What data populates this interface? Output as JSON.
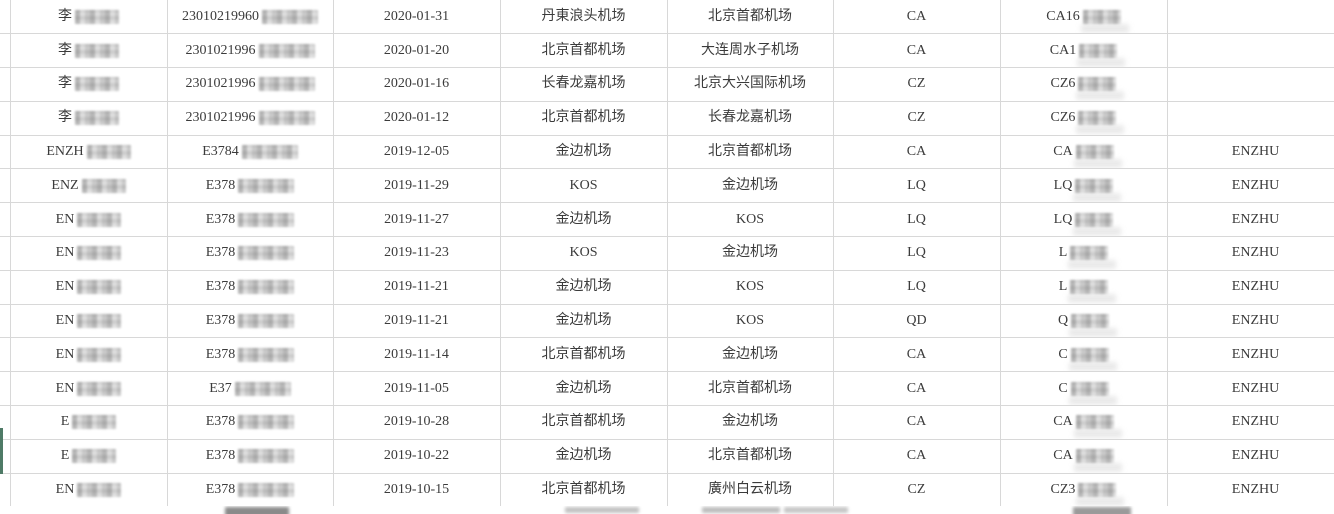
{
  "colors": {
    "background": "#ffffff",
    "grid_line": "#d8d8d8",
    "text": "#3b3b3b",
    "selection_stripe_green": "#4e7a66",
    "mosaic_gray": "#dcdcdc"
  },
  "table": {
    "description": "flight-records-grid",
    "columns": [
      "passenger-name",
      "id-number",
      "flight-date",
      "departure-airport",
      "arrival-airport",
      "airline-code",
      "flight-number",
      "tag"
    ],
    "redaction_note": "name, id-number and flight-number are pixel-mosaic censored after the visible prefix",
    "rows": [
      {
        "name": "李",
        "id": "23010219960",
        "date": "2020-01-31",
        "dep": "丹東浪头机场",
        "arr": "北京首都机场",
        "air": "CA",
        "flight": "CA16",
        "tag": ""
      },
      {
        "name": "李",
        "id": "2301021996",
        "date": "2020-01-20",
        "dep": "北京首都机场",
        "arr": "大连周水子机场",
        "air": "CA",
        "flight": "CA1",
        "tag": ""
      },
      {
        "name": "李",
        "id": "2301021996",
        "date": "2020-01-16",
        "dep": "长春龙嘉机场",
        "arr": "北京大兴国际机场",
        "air": "CZ",
        "flight": "CZ6",
        "tag": ""
      },
      {
        "name": "李",
        "id": "2301021996",
        "date": "2020-01-12",
        "dep": "北京首都机场",
        "arr": "长春龙嘉机场",
        "air": "CZ",
        "flight": "CZ6",
        "tag": ""
      },
      {
        "name": "ENZH",
        "id": "E3784",
        "date": "2019-12-05",
        "dep": "金边机场",
        "arr": "北京首都机场",
        "air": "CA",
        "flight": "CA",
        "tag": "ENZHU"
      },
      {
        "name": "ENZ",
        "id": "E378",
        "date": "2019-11-29",
        "dep": "KOS",
        "arr": "金边机场",
        "air": "LQ",
        "flight": "LQ",
        "tag": "ENZHU"
      },
      {
        "name": "EN",
        "id": "E378",
        "date": "2019-11-27",
        "dep": "金边机场",
        "arr": "KOS",
        "air": "LQ",
        "flight": "LQ",
        "tag": "ENZHU"
      },
      {
        "name": "EN",
        "id": "E378",
        "date": "2019-11-23",
        "dep": "KOS",
        "arr": "金边机场",
        "air": "LQ",
        "flight": "L",
        "tag": "ENZHU"
      },
      {
        "name": "EN",
        "id": "E378",
        "date": "2019-11-21",
        "dep": "金边机场",
        "arr": "KOS",
        "air": "LQ",
        "flight": "L",
        "tag": "ENZHU"
      },
      {
        "name": "EN",
        "id": "E378",
        "date": "2019-11-21",
        "dep": "金边机场",
        "arr": "KOS",
        "air": "QD",
        "flight": "Q",
        "tag": "ENZHU"
      },
      {
        "name": "EN",
        "id": "E378",
        "date": "2019-11-14",
        "dep": "北京首都机场",
        "arr": "金边机场",
        "air": "CA",
        "flight": "C",
        "tag": "ENZHU"
      },
      {
        "name": "EN",
        "id": "E37",
        "date": "2019-11-05",
        "dep": "金边机场",
        "arr": "北京首都机场",
        "air": "CA",
        "flight": "C",
        "tag": "ENZHU"
      },
      {
        "name": "E",
        "id": "E378",
        "date": "2019-10-28",
        "dep": "北京首都机场",
        "arr": "金边机场",
        "air": "CA",
        "flight": "CA",
        "tag": "ENZHU"
      },
      {
        "name": "E",
        "id": "E378",
        "date": "2019-10-22",
        "dep": "金边机场",
        "arr": "北京首都机场",
        "air": "CA",
        "flight": "CA",
        "tag": "ENZHU"
      },
      {
        "name": "EN",
        "id": "E378",
        "date": "2019-10-15",
        "dep": "北京首都机场",
        "arr": "廣州白云机场",
        "air": "CZ",
        "flight": "CZ3",
        "tag": "ENZHU"
      }
    ],
    "partial_next_row": {
      "visible": true
    }
  }
}
